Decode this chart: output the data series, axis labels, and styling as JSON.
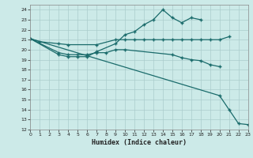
{
  "xlabel": "Humidex (Indice chaleur)",
  "bg_color": "#cceae8",
  "grid_color": "#aacccc",
  "line_color": "#1a6b6b",
  "ylim": [
    12,
    24.5
  ],
  "xlim": [
    0,
    23
  ],
  "yticks": [
    12,
    13,
    14,
    15,
    16,
    17,
    18,
    19,
    20,
    21,
    22,
    23,
    24
  ],
  "xticks": [
    0,
    1,
    2,
    3,
    4,
    5,
    6,
    7,
    8,
    9,
    10,
    11,
    12,
    13,
    14,
    15,
    16,
    17,
    18,
    19,
    20,
    21,
    22,
    23
  ],
  "line1_x": [
    0,
    1,
    3,
    4,
    7,
    9,
    10,
    11,
    12,
    13,
    14,
    15,
    16,
    17,
    18,
    19,
    20,
    21
  ],
  "line1_y": [
    21.1,
    20.8,
    20.6,
    20.5,
    20.5,
    21.0,
    21.0,
    21.0,
    21.0,
    21.0,
    21.0,
    21.0,
    21.0,
    21.0,
    21.0,
    21.0,
    21.0,
    21.3
  ],
  "line2_x": [
    0,
    3,
    4,
    5,
    6,
    7,
    8,
    9,
    10,
    15,
    16,
    17,
    18,
    19,
    20
  ],
  "line2_y": [
    21.1,
    19.7,
    19.5,
    19.5,
    19.5,
    19.7,
    19.7,
    20.0,
    20.0,
    19.5,
    19.2,
    19.0,
    18.9,
    18.5,
    18.3
  ],
  "line3_x": [
    0,
    3,
    4,
    5,
    6,
    7,
    9,
    10,
    11,
    12,
    13,
    14,
    15,
    16,
    17,
    18
  ],
  "line3_y": [
    21.1,
    19.5,
    19.3,
    19.3,
    19.3,
    19.8,
    20.6,
    21.5,
    21.8,
    22.5,
    23.0,
    24.0,
    23.2,
    22.7,
    23.2,
    23.0
  ],
  "line4_x": [
    0,
    20,
    21,
    22,
    23
  ],
  "line4_y": [
    21.1,
    15.4,
    14.0,
    12.6,
    12.5
  ]
}
